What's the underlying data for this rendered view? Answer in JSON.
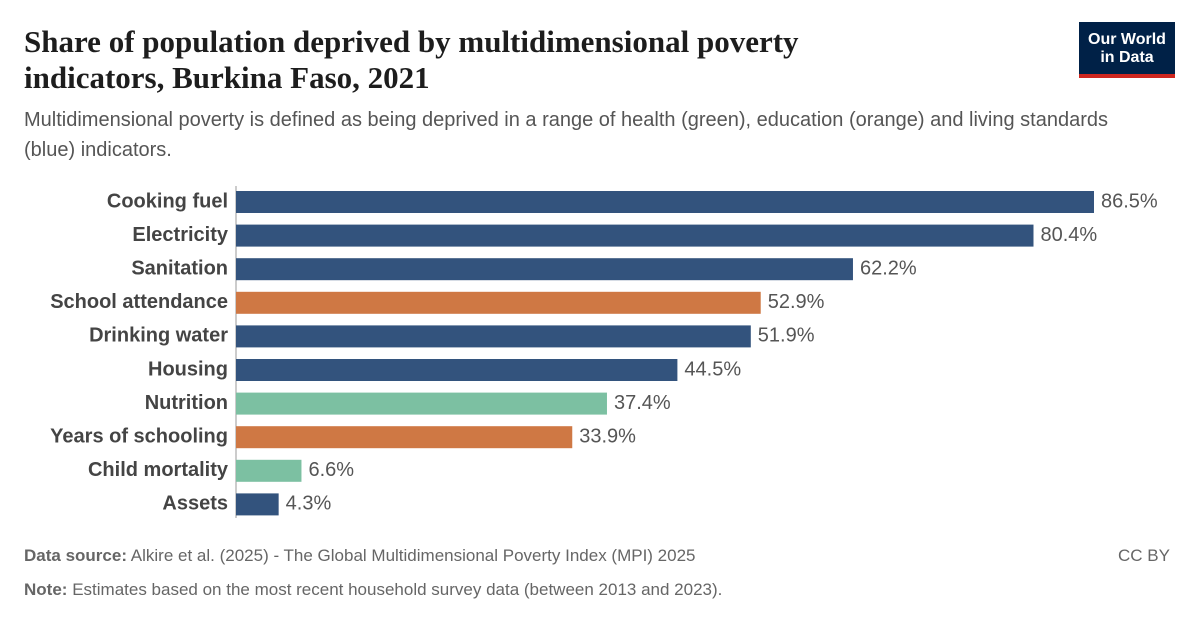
{
  "logo": [
    "Our World",
    "in Data"
  ],
  "chart_data": {
    "type": "bar",
    "orientation": "horizontal",
    "title": "Share of population deprived by multidimensional poverty indicators, Burkina Faso, 2021",
    "subtitle": "Multidimensional poverty is defined as being deprived in a range of health (green), education (orange) and living standards (blue) indicators.",
    "categories": [
      "Cooking fuel",
      "Electricity",
      "Sanitation",
      "School attendance",
      "Drinking water",
      "Housing",
      "Nutrition",
      "Years of schooling",
      "Child mortality",
      "Assets"
    ],
    "values": [
      86.5,
      80.4,
      62.2,
      52.9,
      51.9,
      44.5,
      37.4,
      33.9,
      6.6,
      4.3
    ],
    "value_labels": [
      "86.5%",
      "80.4%",
      "62.2%",
      "52.9%",
      "51.9%",
      "44.5%",
      "37.4%",
      "33.9%",
      "6.6%",
      "4.3%"
    ],
    "colors": [
      "#33537d",
      "#33537d",
      "#33537d",
      "#cf7844",
      "#33537d",
      "#33537d",
      "#7cc0a2",
      "#cf7844",
      "#7cc0a2",
      "#33537d"
    ],
    "source_label": "Data source:",
    "source": "Alkire et al. (2025) - The Global Multidimensional Poverty Index (MPI) 2025",
    "note_label": "Note:",
    "note": "Estimates based on the most recent household survey data (between 2013 and 2023).",
    "license": "CC BY"
  }
}
